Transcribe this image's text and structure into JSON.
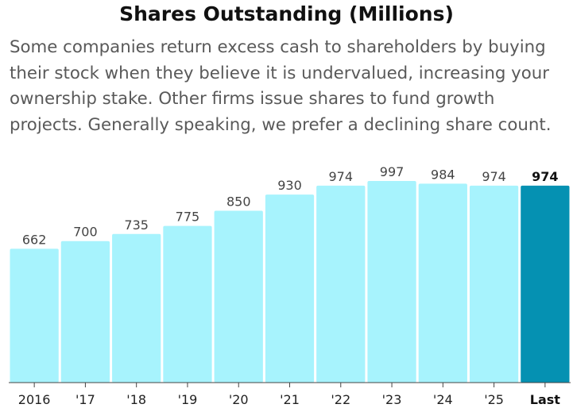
{
  "chart_data": {
    "type": "bar",
    "title": "Shares Outstanding (Millions)",
    "subtitle": "Some companies return excess cash to shareholders by buying their stock when they believe it is undervalued, increasing your ownership stake. Other firms issue shares to fund growth projects. Generally speaking, we prefer a declining share count.",
    "categories": [
      "2016",
      "'17",
      "'18",
      "'19",
      "'20",
      "'21",
      "'22",
      "'23",
      "'24",
      "'25",
      "Last"
    ],
    "values": [
      662,
      700,
      735,
      775,
      850,
      930,
      974,
      997,
      984,
      974,
      974
    ],
    "value_labels": [
      "662",
      "700",
      "735",
      "775",
      "850",
      "930",
      "974",
      "997",
      "984",
      "974",
      "974"
    ],
    "highlight_index": 10,
    "ylim": [
      0,
      1000
    ],
    "grid": false,
    "xlabel": "",
    "ylabel": ""
  },
  "colors": {
    "bar": "#a7f3fd",
    "bar_highlight": "#0591b2",
    "axis": "#444444"
  }
}
